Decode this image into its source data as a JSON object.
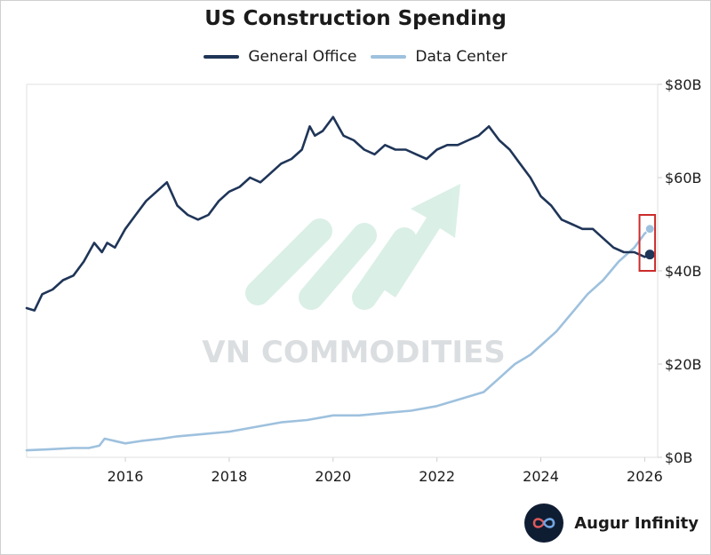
{
  "chart_data": {
    "type": "line",
    "title": "US Construction Spending",
    "xlabel": "",
    "ylabel": "",
    "xlim": [
      2014.1,
      2026.25
    ],
    "ylim": [
      0,
      80
    ],
    "x_ticks": [
      2016,
      2018,
      2020,
      2022,
      2024,
      2026
    ],
    "x_tick_labels": [
      "2016",
      "2018",
      "2020",
      "2022",
      "2024",
      "2026"
    ],
    "y_ticks": [
      0,
      20,
      40,
      60,
      80
    ],
    "y_tick_labels": [
      "$0B",
      "$20B",
      "$40B",
      "$60B",
      "$80B"
    ],
    "y_axis_position": "right",
    "grid": false,
    "legend_position": "top-center",
    "series": [
      {
        "name": "General Office",
        "color": "#1f3558",
        "x": [
          2014.1,
          2014.25,
          2014.4,
          2014.6,
          2014.8,
          2015.0,
          2015.2,
          2015.4,
          2015.55,
          2015.65,
          2015.8,
          2016.0,
          2016.2,
          2016.4,
          2016.6,
          2016.8,
          2017.0,
          2017.2,
          2017.4,
          2017.6,
          2017.8,
          2018.0,
          2018.2,
          2018.4,
          2018.6,
          2018.8,
          2019.0,
          2019.2,
          2019.4,
          2019.55,
          2019.65,
          2019.8,
          2020.0,
          2020.1,
          2020.2,
          2020.4,
          2020.6,
          2020.8,
          2021.0,
          2021.2,
          2021.4,
          2021.6,
          2021.8,
          2022.0,
          2022.2,
          2022.4,
          2022.6,
          2022.8,
          2023.0,
          2023.2,
          2023.4,
          2023.6,
          2023.8,
          2024.0,
          2024.2,
          2024.4,
          2024.6,
          2024.8,
          2025.0,
          2025.2,
          2025.4,
          2025.6,
          2025.8,
          2026.0,
          2026.1
        ],
        "values": [
          32,
          31.5,
          35,
          36,
          38,
          39,
          42,
          46,
          44,
          46,
          45,
          49,
          52,
          55,
          57,
          59,
          54,
          52,
          51,
          52,
          55,
          57,
          58,
          60,
          59,
          61,
          63,
          64,
          66,
          71,
          69,
          70,
          73,
          71,
          69,
          68,
          66,
          65,
          67,
          66,
          66,
          65,
          64,
          66,
          67,
          67,
          68,
          69,
          71,
          68,
          66,
          63,
          60,
          56,
          54,
          51,
          50,
          49,
          49,
          47,
          45,
          44,
          44,
          43,
          43.5
        ]
      },
      {
        "name": "Data Center",
        "color": "#9ec1de",
        "x": [
          2014.1,
          2014.5,
          2015.0,
          2015.3,
          2015.5,
          2015.6,
          2016.0,
          2016.3,
          2016.7,
          2017.0,
          2017.5,
          2018.0,
          2018.5,
          2019.0,
          2019.5,
          2020.0,
          2020.5,
          2021.0,
          2021.5,
          2022.0,
          2022.3,
          2022.6,
          2022.9,
          2023.2,
          2023.5,
          2023.8,
          2024.0,
          2024.3,
          2024.6,
          2024.9,
          2025.2,
          2025.5,
          2025.8,
          2026.0,
          2026.1
        ],
        "values": [
          1.5,
          1.7,
          2,
          2,
          2.5,
          4,
          3,
          3.5,
          4,
          4.5,
          5,
          5.5,
          6.5,
          7.5,
          8,
          9,
          9,
          9.5,
          10,
          11,
          12,
          13,
          14,
          17,
          20,
          22,
          24,
          27,
          31,
          35,
          38,
          42,
          45,
          48,
          49
        ]
      }
    ],
    "highlight": {
      "x_range": [
        2025.9,
        2026.2
      ],
      "y_range": [
        40,
        52
      ],
      "color": "#cc2b2b"
    }
  },
  "watermark": {
    "text": "VN COMMODITIES"
  },
  "branding": {
    "name": "Augur Infinity"
  }
}
